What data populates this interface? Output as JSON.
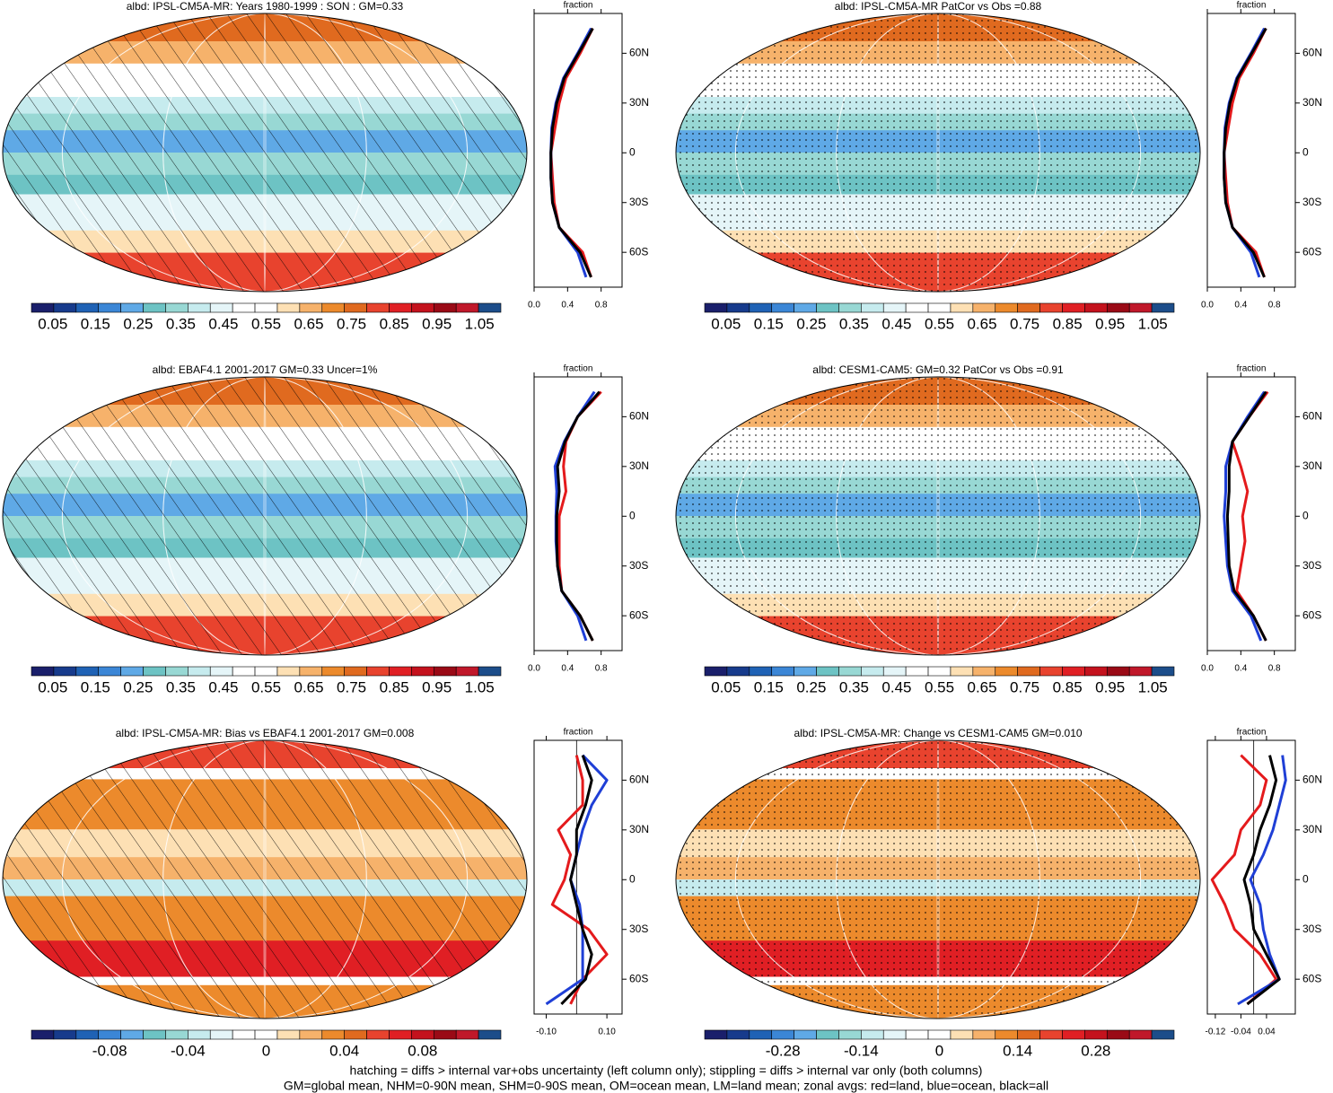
{
  "panels": [
    {
      "title": "albd: IPSL-CM5A-MR: Years 1980-1999 : SON : GM=0.33",
      "col": 0,
      "row": 0,
      "marks": "hatch",
      "palette": "abs",
      "colorbar": {
        "lim": [
          0,
          1.1
        ],
        "ticks": [
          0.05,
          0.15,
          0.25,
          0.35,
          0.45,
          0.55,
          0.65,
          0.75,
          0.85,
          0.95,
          1.05
        ]
      },
      "zonal": {
        "label": "fraction",
        "xlim": [
          0,
          1.05
        ],
        "xticks": [
          {
            "value": 0,
            "label": "0.0"
          },
          0.4,
          0.8
        ],
        "ylim": [
          -81,
          84
        ],
        "yticks": [
          {
            "value": -60,
            "label": "60S"
          },
          {
            "value": -30,
            "label": "30S"
          },
          0,
          {
            "value": 30,
            "label": "30N"
          },
          {
            "value": 60,
            "label": "60N"
          }
        ],
        "lat": [
          -75,
          -60,
          -45,
          -30,
          -15,
          0,
          15,
          30,
          45,
          60,
          75
        ],
        "series": [
          {
            "color": "#e41a1c",
            "values": [
              0.68,
              0.58,
              0.3,
              0.24,
              0.22,
              0.2,
              0.25,
              0.3,
              0.38,
              0.55,
              0.7
            ]
          },
          {
            "color": "#1f3fd6",
            "values": [
              0.62,
              0.52,
              0.3,
              0.22,
              0.2,
              0.2,
              0.21,
              0.26,
              0.35,
              0.52,
              0.68
            ]
          },
          {
            "color": "#000000",
            "values": [
              0.68,
              0.55,
              0.3,
              0.22,
              0.2,
              0.2,
              0.22,
              0.27,
              0.36,
              0.53,
              0.7
            ]
          }
        ]
      }
    },
    {
      "title": "albd: IPSL-CM5A-MR PatCor vs Obs =0.88",
      "col": 1,
      "row": 0,
      "marks": "dots",
      "palette": "abs",
      "colorbar": {
        "lim": [
          0,
          1.1
        ],
        "ticks": [
          0.05,
          0.15,
          0.25,
          0.35,
          0.45,
          0.55,
          0.65,
          0.75,
          0.85,
          0.95,
          1.05
        ]
      },
      "zonal": {
        "label": "fraction",
        "xlim": [
          0,
          1.05
        ],
        "xticks": [
          {
            "value": 0,
            "label": "0.0"
          },
          0.4,
          0.8
        ],
        "ylim": [
          -81,
          84
        ],
        "yticks": [
          {
            "value": -60,
            "label": "60S"
          },
          {
            "value": -30,
            "label": "30S"
          },
          0,
          {
            "value": 30,
            "label": "30N"
          },
          {
            "value": 60,
            "label": "60N"
          }
        ],
        "lat": [
          -75,
          -60,
          -45,
          -30,
          -15,
          0,
          15,
          30,
          45,
          60,
          75
        ],
        "series": [
          {
            "color": "#e41a1c",
            "values": [
              0.68,
              0.58,
              0.3,
              0.24,
              0.22,
              0.2,
              0.25,
              0.3,
              0.38,
              0.55,
              0.7
            ]
          },
          {
            "color": "#1f3fd6",
            "values": [
              0.62,
              0.52,
              0.3,
              0.22,
              0.2,
              0.2,
              0.21,
              0.26,
              0.35,
              0.52,
              0.68
            ]
          },
          {
            "color": "#000000",
            "values": [
              0.68,
              0.55,
              0.3,
              0.22,
              0.2,
              0.2,
              0.22,
              0.27,
              0.36,
              0.53,
              0.7
            ]
          }
        ]
      }
    },
    {
      "title": "albd: EBAF4.1 2001-2017 GM=0.33 Uncer=1%",
      "col": 0,
      "row": 1,
      "marks": "hatch",
      "palette": "abs",
      "colorbar": {
        "lim": [
          0,
          1.1
        ],
        "ticks": [
          0.05,
          0.15,
          0.25,
          0.35,
          0.45,
          0.55,
          0.65,
          0.75,
          0.85,
          0.95,
          1.05
        ]
      },
      "zonal": {
        "label": "fraction",
        "xlim": [
          0,
          1.05
        ],
        "xticks": [
          {
            "value": 0,
            "label": "0.0"
          },
          0.4,
          0.8
        ],
        "ylim": [
          -81,
          84
        ],
        "yticks": [
          {
            "value": -60,
            "label": "60S"
          },
          {
            "value": -30,
            "label": "30S"
          },
          0,
          {
            "value": 30,
            "label": "30N"
          },
          {
            "value": 60,
            "label": "60N"
          }
        ],
        "lat": [
          -75,
          -60,
          -45,
          -30,
          -15,
          0,
          15,
          30,
          45,
          60,
          75
        ],
        "series": [
          {
            "color": "#e41a1c",
            "values": [
              0.7,
              0.55,
              0.33,
              0.3,
              0.3,
              0.3,
              0.38,
              0.35,
              0.38,
              0.52,
              0.8
            ]
          },
          {
            "color": "#1f3fd6",
            "values": [
              0.62,
              0.52,
              0.33,
              0.28,
              0.26,
              0.26,
              0.27,
              0.25,
              0.36,
              0.52,
              0.72
            ]
          },
          {
            "color": "#000000",
            "values": [
              0.7,
              0.55,
              0.33,
              0.28,
              0.27,
              0.27,
              0.3,
              0.28,
              0.37,
              0.52,
              0.78
            ]
          }
        ]
      }
    },
    {
      "title": "albd: CESM1-CAM5: GM=0.32 PatCor vs Obs =0.91",
      "col": 1,
      "row": 1,
      "marks": "dots",
      "palette": "abs",
      "colorbar": {
        "lim": [
          0,
          1.1
        ],
        "ticks": [
          0.05,
          0.15,
          0.25,
          0.35,
          0.45,
          0.55,
          0.65,
          0.75,
          0.85,
          0.95,
          1.05
        ]
      },
      "zonal": {
        "label": "fraction",
        "xlim": [
          0,
          1.05
        ],
        "xticks": [
          {
            "value": 0,
            "label": "0.0"
          },
          0.4,
          0.8
        ],
        "ylim": [
          -81,
          84
        ],
        "yticks": [
          {
            "value": -60,
            "label": "60S"
          },
          {
            "value": -30,
            "label": "30S"
          },
          0,
          {
            "value": 30,
            "label": "30N"
          },
          {
            "value": 60,
            "label": "60N"
          }
        ],
        "lat": [
          -75,
          -60,
          -45,
          -30,
          -15,
          0,
          15,
          30,
          45,
          60,
          75
        ],
        "series": [
          {
            "color": "#e41a1c",
            "values": [
              0.7,
              0.55,
              0.35,
              0.4,
              0.45,
              0.42,
              0.48,
              0.4,
              0.3,
              0.5,
              0.72
            ]
          },
          {
            "color": "#1f3fd6",
            "values": [
              0.64,
              0.52,
              0.3,
              0.24,
              0.22,
              0.2,
              0.22,
              0.22,
              0.3,
              0.48,
              0.68
            ]
          },
          {
            "color": "#000000",
            "values": [
              0.7,
              0.55,
              0.32,
              0.26,
              0.25,
              0.24,
              0.26,
              0.26,
              0.3,
              0.5,
              0.7
            ]
          }
        ]
      }
    },
    {
      "title": "albd: IPSL-CM5A-MR: Bias vs EBAF4.1 2001-2017  GM=0.008",
      "col": 0,
      "row": 2,
      "marks": "hatch",
      "palette": "div",
      "colorbar": {
        "lim": [
          -0.12,
          0.12
        ],
        "ticks": [
          -0.08,
          -0.04,
          0,
          0.04,
          0.08
        ]
      },
      "zonal": {
        "label": "fraction",
        "xlim": [
          -0.14,
          0.15
        ],
        "xticks": [
          {
            "value": -0.1,
            "label": "-0.10"
          },
          {
            "value": 0.1,
            "label": "0.10"
          }
        ],
        "ylim": [
          -81,
          84
        ],
        "yticks": [
          {
            "value": -60,
            "label": "60S"
          },
          {
            "value": -30,
            "label": "30S"
          },
          0,
          {
            "value": 30,
            "label": "30N"
          },
          {
            "value": 60,
            "label": "60N"
          }
        ],
        "lat": [
          -75,
          -60,
          -45,
          -30,
          -15,
          0,
          15,
          30,
          45,
          60,
          75
        ],
        "series": [
          {
            "color": "#e41a1c",
            "values": [
              -0.02,
              0.02,
              0.1,
              0.04,
              -0.08,
              -0.04,
              -0.02,
              -0.06,
              0.02,
              0.02,
              0.0
            ]
          },
          {
            "color": "#1f3fd6",
            "values": [
              -0.1,
              0.02,
              0.02,
              0.02,
              0.01,
              -0.02,
              0.0,
              0.02,
              0.05,
              0.1,
              0.02
            ]
          },
          {
            "color": "#000000",
            "values": [
              -0.05,
              0.03,
              0.05,
              0.02,
              0.0,
              -0.02,
              0.0,
              0.0,
              0.03,
              0.05,
              0.02
            ]
          }
        ]
      }
    },
    {
      "title": "albd: IPSL-CM5A-MR: Change vs CESM1-CAM5 GM=0.010",
      "col": 1,
      "row": 2,
      "marks": "dots",
      "palette": "div",
      "colorbar": {
        "lim": [
          -0.42,
          0.42
        ],
        "ticks": [
          -0.28,
          -0.14,
          0,
          0.14,
          0.28
        ]
      },
      "zonal": {
        "label": "fraction",
        "xlim": [
          -0.145,
          0.13
        ],
        "xticks": [
          {
            "value": -0.12,
            "label": "-0.12"
          },
          {
            "value": -0.04,
            "label": "-0.04"
          },
          0.04
        ],
        "ylim": [
          -81,
          84
        ],
        "yticks": [
          {
            "value": -60,
            "label": "60S"
          },
          {
            "value": -30,
            "label": "30S"
          },
          0,
          {
            "value": 30,
            "label": "30N"
          },
          {
            "value": 60,
            "label": "60N"
          }
        ],
        "lat": [
          -75,
          -60,
          -45,
          -30,
          -15,
          0,
          15,
          30,
          45,
          60,
          75
        ],
        "series": [
          {
            "color": "#e41a1c",
            "values": [
              -0.02,
              0.07,
              0.02,
              -0.06,
              -0.09,
              -0.13,
              -0.06,
              -0.04,
              0.02,
              0.04,
              -0.04
            ]
          },
          {
            "color": "#1f3fd6",
            "values": [
              -0.05,
              0.08,
              0.05,
              0.03,
              0.02,
              -0.01,
              0.03,
              0.06,
              0.08,
              0.1,
              0.09
            ]
          },
          {
            "color": "#000000",
            "values": [
              -0.02,
              0.08,
              0.04,
              0.0,
              -0.01,
              -0.03,
              0.0,
              0.02,
              0.05,
              0.07,
              0.05
            ]
          }
        ]
      }
    }
  ],
  "palettes": {
    "abs": [
      "#1a1f6b",
      "#173b8c",
      "#1f62b5",
      "#3b86d6",
      "#5fa9e6",
      "#6dc3c4",
      "#98d8d4",
      "#c6ebee",
      "#e5f5f8",
      "#ffffff",
      "#ffffff",
      "#fde0b4",
      "#f6b26b",
      "#ec8a2c",
      "#e06a1f",
      "#e8432e",
      "#e01f24",
      "#c4121d",
      "#9a0a16",
      "#c0182a",
      "#1c4d8a"
    ],
    "div": [
      "#1a1f6b",
      "#173b8c",
      "#1f62b5",
      "#3b86d6",
      "#5fa9e6",
      "#6dc3c4",
      "#98d8d4",
      "#c6ebee",
      "#e5f5f8",
      "#ffffff",
      "#ffffff",
      "#fde0b4",
      "#f6b26b",
      "#ec8a2c",
      "#e06a1f",
      "#e8432e",
      "#e01f24",
      "#c4121d",
      "#9a0a16",
      "#c0182a",
      "#1c4d8a"
    ]
  },
  "footer": [
    "hatching = diffs > internal var+obs uncertainty (left column only); stippling = diffs > internal var only (both columns)",
    "GM=global mean, NHM=0-90N mean, SHM=0-90S mean, OM=ocean mean, LM=land mean; zonal avgs: red=land, blue=ocean, black=all"
  ]
}
